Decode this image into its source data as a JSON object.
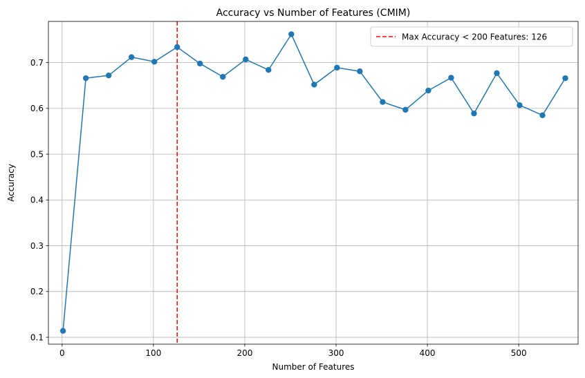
{
  "chart_data": {
    "type": "line",
    "title": "Accuracy vs Number of Features (CMIM)",
    "xlabel": "Number of Features",
    "ylabel": "Accuracy",
    "xlim": [
      -15,
      565
    ],
    "ylim": [
      0.085,
      0.79
    ],
    "xticks": [
      0,
      100,
      200,
      300,
      400,
      500
    ],
    "yticks": [
      0.1,
      0.2,
      0.3,
      0.4,
      0.5,
      0.6,
      0.7
    ],
    "grid": true,
    "legend_position": "top-right",
    "series": [
      {
        "color": "#1f77b4",
        "marker": "circle",
        "x": [
          1,
          26,
          51,
          76,
          101,
          126,
          151,
          176,
          201,
          226,
          251,
          276,
          301,
          326,
          351,
          376,
          401,
          426,
          451,
          476,
          501,
          526,
          551
        ],
        "y": [
          0.114,
          0.666,
          0.672,
          0.712,
          0.702,
          0.734,
          0.698,
          0.669,
          0.707,
          0.684,
          0.762,
          0.652,
          0.689,
          0.681,
          0.614,
          0.597,
          0.639,
          0.667,
          0.589,
          0.677,
          0.607,
          0.585,
          0.666
        ]
      }
    ],
    "vline": {
      "x": 126,
      "color": "#ff0000",
      "style": "dashed",
      "label": "Max Accuracy < 200 Features: 126"
    }
  }
}
